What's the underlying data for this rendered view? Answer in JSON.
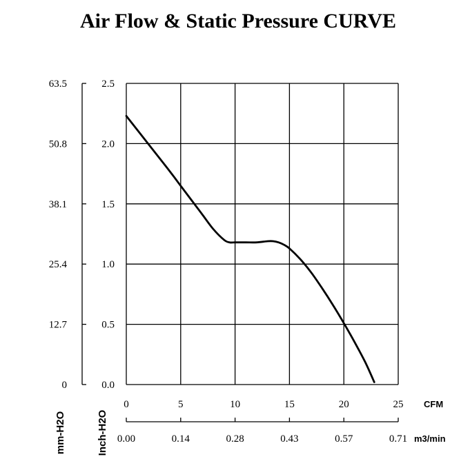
{
  "chart_data": {
    "type": "line",
    "title": "Air Flow & Static Pressure CURVE",
    "x_primary": {
      "unit": "CFM",
      "ticks": [
        "0",
        "5",
        "10",
        "15",
        "20",
        "25"
      ],
      "range": [
        0,
        25
      ]
    },
    "x_secondary": {
      "unit": "m3/min",
      "ticks": [
        "0.00",
        "0.14",
        "0.28",
        "0.43",
        "0.57",
        "0.71"
      ],
      "range": [
        0,
        0.71
      ]
    },
    "y_inch": {
      "label": "Inch-H2O",
      "ticks": [
        "0.0",
        "0.5",
        "1.0",
        "1.5",
        "2.0",
        "2.5"
      ],
      "range": [
        0,
        2.5
      ]
    },
    "y_mm": {
      "label": "mm-H2O",
      "ticks": [
        "0",
        "12.7",
        "25.4",
        "38.1",
        "50.8",
        "63.5"
      ],
      "range": [
        0,
        63.5
      ]
    },
    "grid": true,
    "series": [
      {
        "name": "Static Pressure",
        "x": [
          0,
          2,
          4,
          5,
          6,
          7,
          8,
          9,
          9.5,
          10,
          11,
          12,
          13,
          13.5,
          14,
          14.5,
          15,
          16,
          17,
          18,
          19,
          20,
          21,
          22,
          22.8
        ],
        "y": [
          2.23,
          2.0,
          1.77,
          1.65,
          1.53,
          1.41,
          1.29,
          1.2,
          1.18,
          1.18,
          1.18,
          1.18,
          1.19,
          1.19,
          1.18,
          1.16,
          1.13,
          1.04,
          0.93,
          0.8,
          0.66,
          0.51,
          0.35,
          0.18,
          0.02
        ]
      }
    ]
  }
}
